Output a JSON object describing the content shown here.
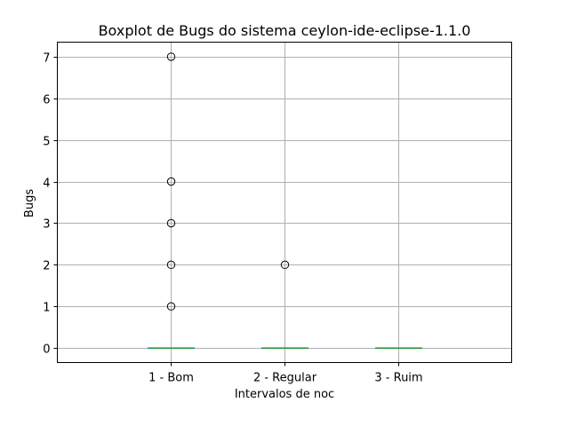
{
  "chart_data": {
    "type": "box",
    "title": "Boxplot de Bugs do sistema ceylon-ide-eclipse-1.1.0",
    "xlabel": "Intervalos de noc",
    "ylabel": "Bugs",
    "categories": [
      "1 - Bom",
      "2 - Regular",
      "3 - Ruim"
    ],
    "ylim": [
      -0.35,
      7.35
    ],
    "yticks": [
      0,
      1,
      2,
      3,
      4,
      5,
      6,
      7
    ],
    "grid": true,
    "boxes": [
      {
        "category": "1 - Bom",
        "q1": 0,
        "median": 0,
        "q3": 0,
        "whisker_low": 0,
        "whisker_high": 0,
        "outliers": [
          1,
          2,
          3,
          4,
          7
        ]
      },
      {
        "category": "2 - Regular",
        "q1": 0,
        "median": 0,
        "q3": 0,
        "whisker_low": 0,
        "whisker_high": 0,
        "outliers": [
          2
        ]
      },
      {
        "category": "3 - Ruim",
        "q1": 0,
        "median": 0,
        "q3": 0,
        "whisker_low": 0,
        "whisker_high": 0,
        "outliers": []
      }
    ],
    "colors": {
      "median": "#2ca02c",
      "box": "#1f77b4",
      "grid": "#b0b0b0",
      "flier": "#000000"
    }
  }
}
